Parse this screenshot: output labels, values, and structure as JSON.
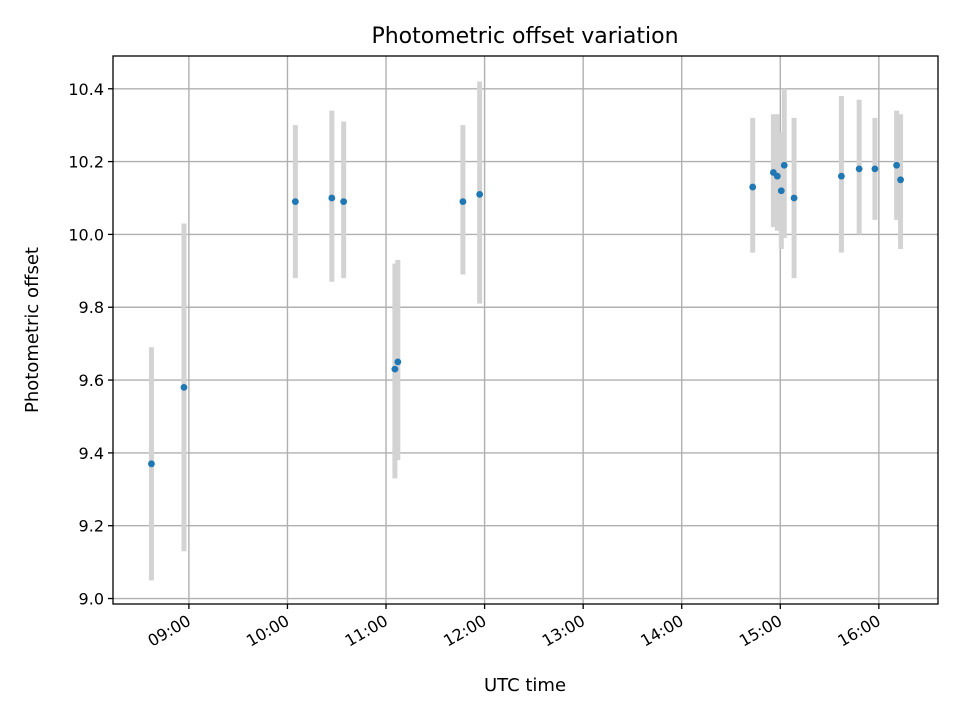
{
  "chart_data": {
    "type": "scatter",
    "title": "Photometric offset variation",
    "xlabel": "UTC time",
    "ylabel": "Photometric offset",
    "xlim": [
      8.23,
      16.6
    ],
    "ylim": [
      8.985,
      10.49
    ],
    "x_tick_values": [
      9,
      10,
      11,
      12,
      13,
      14,
      15,
      16
    ],
    "x_tick_labels": [
      "09:00",
      "10:00",
      "11:00",
      "12:00",
      "13:00",
      "14:00",
      "15:00",
      "16:00"
    ],
    "y_tick_values": [
      9.0,
      9.2,
      9.4,
      9.6,
      9.8,
      10.0,
      10.2,
      10.4
    ],
    "y_tick_labels": [
      "9.0",
      "9.2",
      "9.4",
      "9.6",
      "9.8",
      "10.0",
      "10.2",
      "10.4"
    ],
    "grid": true,
    "marker_color": "#1f77b4",
    "errorbar_color": "#d3d3d3",
    "points": [
      {
        "x": 8.62,
        "y": 9.37,
        "ymin": 9.05,
        "ymax": 9.69
      },
      {
        "x": 8.95,
        "y": 9.58,
        "ymin": 9.13,
        "ymax": 10.03
      },
      {
        "x": 10.08,
        "y": 10.09,
        "ymin": 9.88,
        "ymax": 10.3
      },
      {
        "x": 10.45,
        "y": 10.1,
        "ymin": 9.87,
        "ymax": 10.34
      },
      {
        "x": 10.57,
        "y": 10.09,
        "ymin": 9.88,
        "ymax": 10.31
      },
      {
        "x": 11.09,
        "y": 9.63,
        "ymin": 9.33,
        "ymax": 9.92
      },
      {
        "x": 11.12,
        "y": 9.65,
        "ymin": 9.38,
        "ymax": 9.93
      },
      {
        "x": 11.78,
        "y": 10.09,
        "ymin": 9.89,
        "ymax": 10.3
      },
      {
        "x": 11.95,
        "y": 10.11,
        "ymin": 9.81,
        "ymax": 10.42
      },
      {
        "x": 14.72,
        "y": 10.13,
        "ymin": 9.95,
        "ymax": 10.32
      },
      {
        "x": 14.93,
        "y": 10.17,
        "ymin": 10.02,
        "ymax": 10.33
      },
      {
        "x": 14.97,
        "y": 10.16,
        "ymin": 10.01,
        "ymax": 10.33
      },
      {
        "x": 15.01,
        "y": 10.12,
        "ymin": 9.96,
        "ymax": 10.28
      },
      {
        "x": 15.04,
        "y": 10.19,
        "ymin": 9.99,
        "ymax": 10.4
      },
      {
        "x": 15.14,
        "y": 10.1,
        "ymin": 9.88,
        "ymax": 10.32
      },
      {
        "x": 15.62,
        "y": 10.16,
        "ymin": 9.95,
        "ymax": 10.38
      },
      {
        "x": 15.8,
        "y": 10.18,
        "ymin": 10.0,
        "ymax": 10.37
      },
      {
        "x": 15.96,
        "y": 10.18,
        "ymin": 10.04,
        "ymax": 10.32
      },
      {
        "x": 16.18,
        "y": 10.19,
        "ymin": 10.04,
        "ymax": 10.34
      },
      {
        "x": 16.22,
        "y": 10.15,
        "ymin": 9.96,
        "ymax": 10.33
      }
    ]
  }
}
